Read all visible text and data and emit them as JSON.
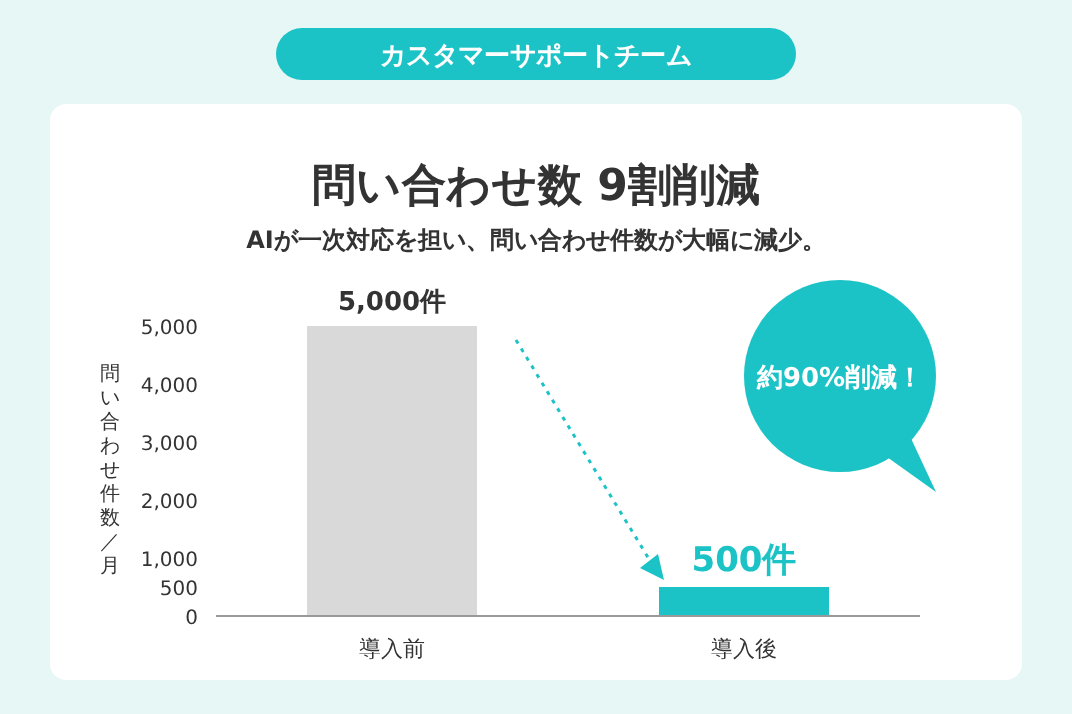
{
  "chart_data": {
    "type": "bar",
    "title": "問い合わせ数 9割削減",
    "subtitle": "AIが一次対応を担い、問い合わせ件数が大幅に減少。",
    "ylabel": "問い合わせ件数／月",
    "annotations": [
      "カスタマーサポートチーム",
      "約90%削減！"
    ],
    "categories": [
      "導入前",
      "導入後"
    ],
    "values": [
      5000,
      500
    ],
    "colors": [
      "#d9d9d9",
      "#1cc3c6"
    ],
    "value_labels": [
      "5,000件",
      "500件"
    ],
    "ylim": [
      0,
      5000
    ],
    "yticks": [
      0,
      500,
      {
        "value": 1000,
        "label": "1,000"
      },
      {
        "value": 2000,
        "label": "2,000"
      },
      {
        "value": 3000,
        "label": "3,000"
      },
      {
        "value": 4000,
        "label": "4,000"
      },
      {
        "value": 5000,
        "label": "5,000"
      }
    ],
    "grid": false
  }
}
